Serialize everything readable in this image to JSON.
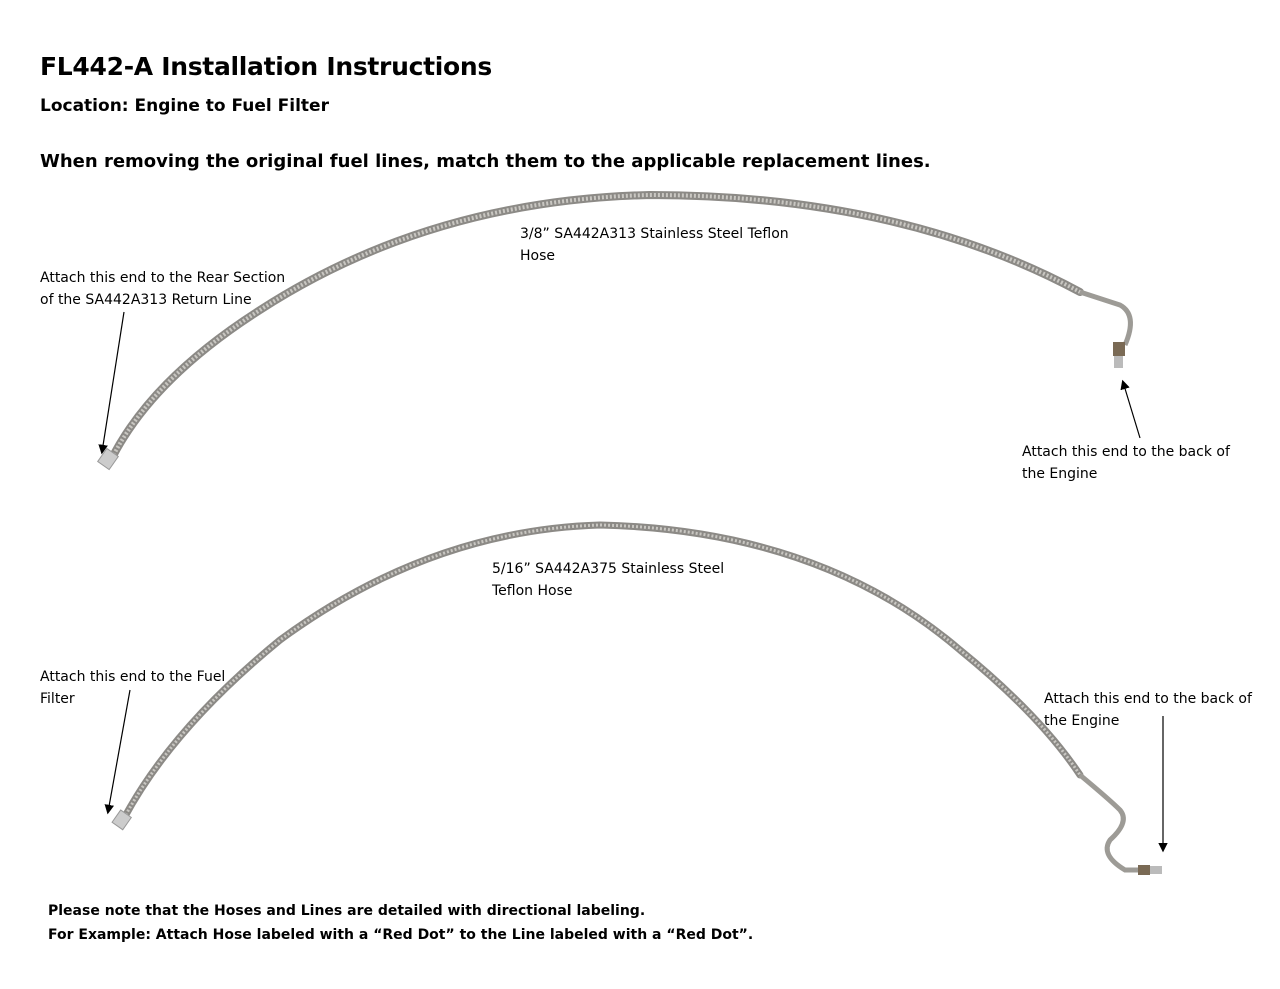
{
  "title": "FL442-A Installation Instructions",
  "location": "Location: Engine to Fuel Filter",
  "instruction": "When removing the original fuel lines, match them to the applicable replacement lines.",
  "hose1": {
    "label_line1": "3/8” SA442A313 Stainless Steel Teflon",
    "label_line2": "Hose",
    "left_end_line1": "Attach this end to the Rear Section",
    "left_end_line2": "of the SA442A313 Return Line",
    "right_end_line1": "Attach this end to the back of",
    "right_end_line2": "the Engine"
  },
  "hose2": {
    "label_line1": "5/16” SA442A375 Stainless Steel",
    "label_line2": "Teflon Hose",
    "left_end_line1": "Attach this end to the Fuel",
    "left_end_line2": "Filter",
    "right_end_line1": "Attach this end to the back of",
    "right_end_line2": "the Engine"
  },
  "notes": [
    "Please note that the Hoses and Lines are detailed with directional labeling.",
    "For Example: Attach Hose labeled with a “Red Dot” to the Line labeled with a “Red Dot”."
  ]
}
